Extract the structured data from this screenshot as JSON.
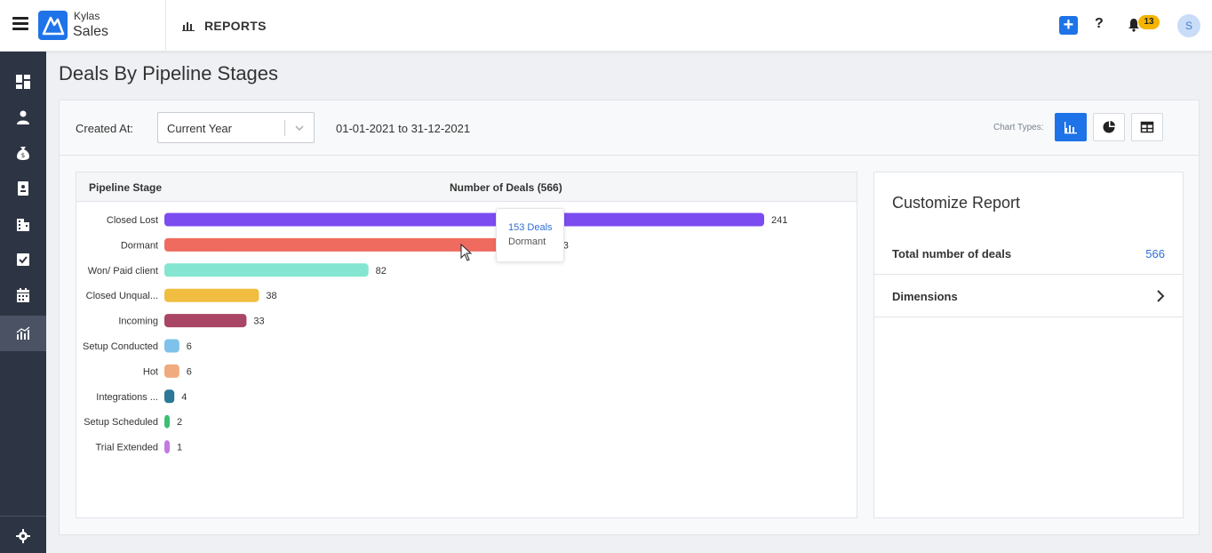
{
  "header": {
    "brand_top": "Kylas",
    "brand_main": "Sales",
    "section": "REPORTS",
    "plus_label": "+",
    "help_label": "?",
    "notification_count": "13",
    "avatar_initial": "S",
    "accent_color": "#1e73e8"
  },
  "sidebar": {
    "items": [
      {
        "icon": "dashboard-icon"
      },
      {
        "icon": "person-icon"
      },
      {
        "icon": "money-bag-icon"
      },
      {
        "icon": "contact-card-icon"
      },
      {
        "icon": "building-icon"
      },
      {
        "icon": "checkbox-icon"
      },
      {
        "icon": "calendar-icon"
      },
      {
        "icon": "reports-icon",
        "active": true
      }
    ],
    "bottom_icon": "gear-icon"
  },
  "page": {
    "title": "Deals By Pipeline Stages"
  },
  "filters": {
    "created_label": "Created At:",
    "select_value": "Current Year",
    "date_range": "01-01-2021 to 31-12-2021",
    "chart_types_label": "Chart Types:",
    "chart_types": [
      "bar-chart-icon",
      "pie-chart-icon",
      "table-icon"
    ],
    "active_chart_type": "bar-chart-icon"
  },
  "table_header": {
    "stage": "Pipeline Stage",
    "deals": "Number of Deals (566)"
  },
  "chart_data": {
    "type": "bar",
    "orientation": "horizontal",
    "categories": [
      "Closed Lost",
      "Dormant",
      "Won/ Paid client",
      "Closed Unqual...",
      "Incoming",
      "Setup Conducted",
      "Hot",
      "Integrations ...",
      "Setup Scheduled",
      "Trial Extended"
    ],
    "values": [
      241,
      153,
      82,
      38,
      33,
      6,
      6,
      4,
      2,
      1
    ],
    "colors": [
      "#7b4cf0",
      "#ef6b5f",
      "#84e6d0",
      "#f0bd40",
      "#a94565",
      "#7ec1ea",
      "#efab7e",
      "#2c7896",
      "#3dbe73",
      "#c17ae0"
    ],
    "xlim": [
      0,
      241
    ],
    "grid": false
  },
  "tooltip": {
    "deals": "153 Deals",
    "stage": "Dormant"
  },
  "customize": {
    "title": "Customize Report",
    "total_label": "Total number of deals",
    "total_value": "566",
    "dimensions_label": "Dimensions"
  }
}
